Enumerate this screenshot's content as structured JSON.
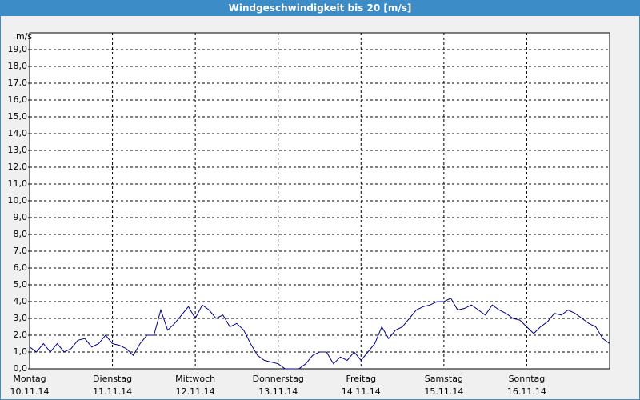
{
  "chart_data": {
    "type": "line",
    "title": "Windgeschwindigkeit bis 20 [m/s]",
    "y_label": "m/s",
    "categories": [
      "Montag",
      null,
      null,
      null,
      null,
      null,
      null,
      null,
      null,
      null,
      null,
      null,
      "Dienstag",
      null,
      null,
      null,
      null,
      null,
      null,
      null,
      null,
      null,
      null,
      null,
      "Mittwoch",
      null,
      null,
      null,
      null,
      null,
      null,
      null,
      null,
      null,
      null,
      null,
      "Donnerstag",
      null,
      null,
      null,
      null,
      null,
      null,
      null,
      null,
      null,
      null,
      null,
      "Freitag",
      null,
      null,
      null,
      null,
      null,
      null,
      null,
      null,
      null,
      null,
      null,
      "Samstag",
      null,
      null,
      null,
      null,
      null,
      null,
      null,
      null,
      null,
      null,
      null,
      "Sonntag",
      null,
      null,
      null,
      null,
      null,
      null,
      null,
      null,
      null,
      null,
      null,
      null
    ],
    "category_dates": [
      "10.11.14",
      null,
      null,
      null,
      null,
      null,
      null,
      null,
      null,
      null,
      null,
      null,
      "11.11.14",
      null,
      null,
      null,
      null,
      null,
      null,
      null,
      null,
      null,
      null,
      null,
      "12.11.14",
      null,
      null,
      null,
      null,
      null,
      null,
      null,
      null,
      null,
      null,
      null,
      "13.11.14",
      null,
      null,
      null,
      null,
      null,
      null,
      null,
      null,
      null,
      null,
      null,
      "14.11.14",
      null,
      null,
      null,
      null,
      null,
      null,
      null,
      null,
      null,
      null,
      null,
      "15.11.14",
      null,
      null,
      null,
      null,
      null,
      null,
      null,
      null,
      null,
      null,
      null,
      "16.11.14",
      null,
      null,
      null,
      null,
      null,
      null,
      null,
      null,
      null,
      null,
      null,
      null
    ],
    "series": [
      {
        "name": "Windgeschwindigkeit",
        "color": "#00008b",
        "values": [
          1.3,
          1.0,
          1.5,
          1.0,
          1.5,
          1.0,
          1.2,
          1.7,
          1.8,
          1.3,
          1.5,
          2.0,
          1.5,
          1.4,
          1.2,
          0.8,
          1.5,
          2.0,
          2.0,
          3.5,
          2.3,
          2.7,
          3.2,
          3.7,
          3.0,
          3.8,
          3.5,
          3.0,
          3.2,
          2.5,
          2.7,
          2.3,
          1.5,
          0.8,
          0.5,
          0.4,
          0.3,
          0.0,
          0.0,
          0.0,
          0.3,
          0.8,
          1.0,
          1.0,
          0.3,
          0.7,
          0.5,
          1.0,
          0.5,
          1.0,
          1.5,
          2.5,
          1.8,
          2.3,
          2.5,
          3.0,
          3.5,
          3.7,
          3.8,
          4.0,
          4.0,
          4.2,
          3.5,
          3.6,
          3.8,
          3.5,
          3.2,
          3.8,
          3.5,
          3.3,
          3.0,
          2.9,
          2.5,
          2.1,
          2.5,
          2.8,
          3.3,
          3.2,
          3.5,
          3.3,
          3.0,
          2.7,
          2.5,
          1.8,
          1.5
        ]
      }
    ],
    "ylim": [
      0,
      20
    ],
    "yticks": [
      {
        "value": 0,
        "label": "0,0"
      },
      {
        "value": 1,
        "label": "1,0"
      },
      {
        "value": 2,
        "label": "2,0"
      },
      {
        "value": 3,
        "label": "3,0"
      },
      {
        "value": 4,
        "label": "4,0"
      },
      {
        "value": 5,
        "label": "5,0"
      },
      {
        "value": 6,
        "label": "6,0"
      },
      {
        "value": 7,
        "label": "7,0"
      },
      {
        "value": 8,
        "label": "8,0"
      },
      {
        "value": 9,
        "label": "9,0"
      },
      {
        "value": 10,
        "label": "10,0"
      },
      {
        "value": 11,
        "label": "11,0"
      },
      {
        "value": 12,
        "label": "12,0"
      },
      {
        "value": 13,
        "label": "13,0"
      },
      {
        "value": 14,
        "label": "14,0"
      },
      {
        "value": 15,
        "label": "15,0"
      },
      {
        "value": 16,
        "label": "16,0"
      },
      {
        "value": 17,
        "label": "17,0"
      },
      {
        "value": 18,
        "label": "18,0"
      },
      {
        "value": 19,
        "label": "19,0"
      }
    ],
    "grid": true
  }
}
